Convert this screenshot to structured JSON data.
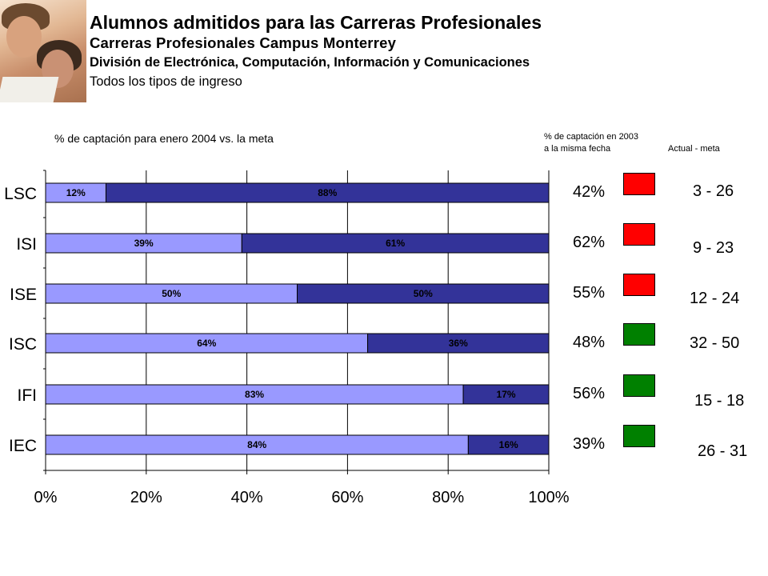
{
  "header": {
    "title": "Alumnos admitidos para las Carreras Profesionales",
    "subtitle": "Carreras Profesionales Campus Monterrey",
    "division": "División de Electrónica, Computación, Información y Comunicaciones",
    "admission_type": "Todos los tipos de ingreso"
  },
  "side_columns": {
    "previous_header_line1": "% de captación en 2003",
    "previous_header_line2": "a la misma fecha",
    "actual_meta_header": "Actual -  meta",
    "rows": [
      {
        "previous_pct": "42%",
        "status_color": "#ff0000",
        "actual_meta": "3 - 26"
      },
      {
        "previous_pct": "62%",
        "status_color": "#ff0000",
        "actual_meta": "9 - 23"
      },
      {
        "previous_pct": "55%",
        "status_color": "#ff0000",
        "actual_meta": "12 - 24"
      },
      {
        "previous_pct": "48%",
        "status_color": "#008000",
        "actual_meta": "32 - 50"
      },
      {
        "previous_pct": "56%",
        "status_color": "#008000",
        "actual_meta": "15 - 18"
      },
      {
        "previous_pct": "39%",
        "status_color": "#008000",
        "actual_meta": "26 - 31"
      }
    ]
  },
  "chart_data": {
    "type": "bar",
    "orientation": "horizontal",
    "stacked": true,
    "percent_stacked": true,
    "title": "% de captación para enero 2004 vs. la meta",
    "categories": [
      "LSC",
      "ISI",
      "ISE",
      "ISC",
      "IFI",
      "IEC"
    ],
    "series": [
      {
        "values": [
          12,
          39,
          50,
          64,
          83,
          84
        ],
        "color": "#9999ff",
        "labels": [
          "12%",
          "39%",
          "50%",
          "64%",
          "83%",
          "84%"
        ]
      },
      {
        "values": [
          88,
          61,
          50,
          36,
          17,
          16
        ],
        "color": "#333399",
        "labels": [
          "88%",
          "61%",
          "50%",
          "36%",
          "17%",
          "16%"
        ]
      }
    ],
    "xlim": [
      0,
      100
    ],
    "xticks": [
      "0%",
      "20%",
      "40%",
      "60%",
      "80%",
      "100%"
    ],
    "grid": "vertical",
    "legend": "none"
  }
}
